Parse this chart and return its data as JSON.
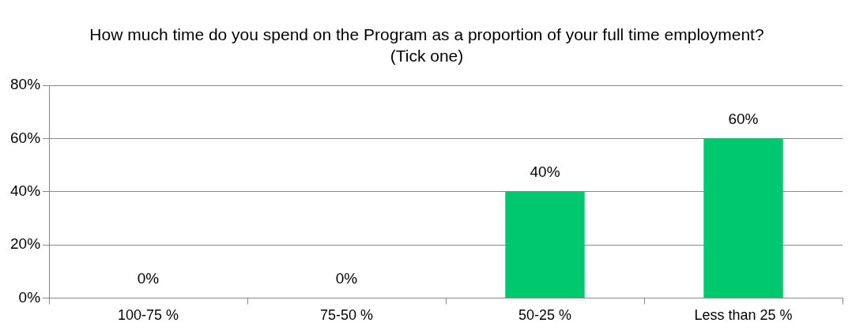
{
  "chart_data": {
    "type": "bar",
    "title": "How much time do you spend on the Program as a proportion of your full time employment? (Tick one)",
    "categories": [
      "100-75 %",
      "75-50 %",
      "50-25 %",
      "Less than 25 %"
    ],
    "values": [
      0,
      0,
      40,
      60
    ],
    "color": "#00c86e",
    "value_labels": [
      "0%",
      "0%",
      "40%",
      "60%"
    ],
    "ylim": [
      0,
      80
    ],
    "yticks": [
      {
        "value": 0,
        "label": "0%"
      },
      {
        "value": 20,
        "label": "20%"
      },
      {
        "value": 40,
        "label": "40%"
      },
      {
        "value": 60,
        "label": "60%"
      },
      {
        "value": 80,
        "label": "80%"
      }
    ],
    "grid": "y",
    "legend": false
  }
}
